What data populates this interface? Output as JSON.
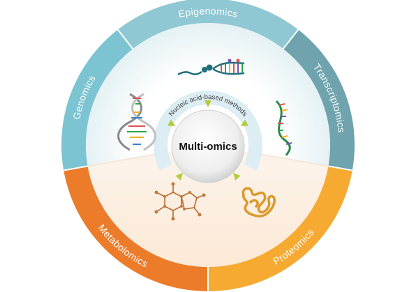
{
  "center": {
    "label": "Multi-omics"
  },
  "inner_arc": {
    "label": "Nucleic acid-based methods"
  },
  "segments": [
    {
      "id": "epigenomics",
      "label": "Epigenomics",
      "color": "#8fc7d3",
      "icon": "dna-methylation-icon"
    },
    {
      "id": "transcriptomics",
      "label": "Transcriptomics",
      "color": "#6fa3ad",
      "icon": "rna-strand-icon"
    },
    {
      "id": "proteomics",
      "label": "Proteomics",
      "color": "#f6aa32",
      "icon": "protein-fold-icon"
    },
    {
      "id": "metabolomics",
      "label": "Metabolomics",
      "color": "#ec7c2a",
      "icon": "molecule-icon"
    },
    {
      "id": "genomics",
      "label": "Genomics",
      "color": "#7cc4d2",
      "icon": "dna-helix-icon"
    }
  ],
  "colors": {
    "arrow": "#b5c93a",
    "inner_arc": "#dcedf3"
  }
}
